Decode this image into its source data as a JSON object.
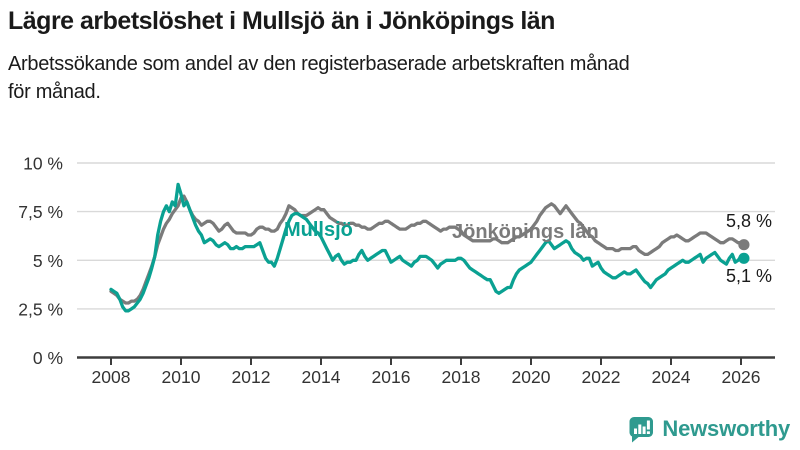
{
  "header": {
    "title": "Lägre arbetslöshet i Mullsjö än i Jönköpings län",
    "subtitle": "Arbetssökande som andel av den registerbaserade arbetskraften månad för månad."
  },
  "chart_data": {
    "type": "line",
    "grid": "horizontal-only",
    "x_axis": {
      "start_year": 2008.0,
      "step_months": 1,
      "tick_years": [
        2008,
        2010,
        2012,
        2014,
        2016,
        2018,
        2020,
        2022,
        2024,
        2026
      ],
      "tick_labels": [
        "2008",
        "2010",
        "2012",
        "2014",
        "2016",
        "2018",
        "2020",
        "2022",
        "2024",
        "2026"
      ]
    },
    "y_axis": {
      "range": [
        0,
        10
      ],
      "ticks": [
        {
          "value": 0,
          "label": "0 %"
        },
        {
          "value": 2.5,
          "label": "2,5 %"
        },
        {
          "value": 5,
          "label": "5 %"
        },
        {
          "value": 7.5,
          "label": "7,5 %"
        },
        {
          "value": 10,
          "label": "10 %"
        }
      ]
    },
    "series": [
      {
        "name": "Jönköpings län",
        "color": "#7b7b7b",
        "end_label": "5,8 %",
        "values": [
          3.4,
          3.3,
          3.2,
          3.0,
          2.9,
          2.8,
          2.8,
          2.9,
          2.9,
          3.0,
          3.2,
          3.5,
          3.9,
          4.3,
          4.7,
          5.2,
          5.8,
          6.2,
          6.6,
          6.9,
          7.1,
          7.4,
          7.6,
          7.8,
          8.2,
          8.3,
          8.0,
          7.6,
          7.3,
          7.1,
          7.0,
          6.8,
          6.9,
          7.0,
          7.0,
          6.9,
          6.7,
          6.5,
          6.6,
          6.8,
          6.9,
          6.7,
          6.5,
          6.4,
          6.4,
          6.4,
          6.4,
          6.3,
          6.3,
          6.4,
          6.6,
          6.7,
          6.7,
          6.6,
          6.6,
          6.5,
          6.5,
          6.6,
          6.9,
          7.1,
          7.4,
          7.8,
          7.7,
          7.6,
          7.4,
          7.3,
          7.3,
          7.3,
          7.4,
          7.5,
          7.6,
          7.7,
          7.6,
          7.6,
          7.4,
          7.2,
          7.1,
          7.0,
          6.9,
          6.9,
          6.8,
          6.8,
          6.9,
          6.9,
          6.8,
          6.8,
          6.7,
          6.7,
          6.6,
          6.6,
          6.7,
          6.8,
          6.9,
          6.9,
          7.0,
          7.0,
          6.9,
          6.8,
          6.7,
          6.6,
          6.6,
          6.6,
          6.7,
          6.8,
          6.8,
          6.9,
          6.9,
          7.0,
          7.0,
          6.9,
          6.8,
          6.7,
          6.6,
          6.5,
          6.6,
          6.6,
          6.7,
          6.7,
          6.7,
          6.6,
          6.5,
          6.3,
          6.2,
          6.1,
          6.0,
          6.0,
          6.0,
          6.0,
          6.0,
          6.0,
          6.0,
          6.1,
          6.1,
          6.0,
          5.9,
          5.9,
          5.9,
          6.0,
          6.1,
          6.2,
          6.2,
          6.3,
          6.4,
          6.5,
          6.6,
          6.8,
          7.0,
          7.3,
          7.5,
          7.7,
          7.8,
          7.9,
          7.8,
          7.6,
          7.4,
          7.6,
          7.8,
          7.6,
          7.4,
          7.2,
          7.0,
          6.9,
          6.7,
          6.5,
          6.3,
          6.2,
          6.0,
          5.9,
          5.8,
          5.7,
          5.6,
          5.6,
          5.6,
          5.5,
          5.5,
          5.6,
          5.6,
          5.6,
          5.6,
          5.7,
          5.7,
          5.5,
          5.4,
          5.3,
          5.3,
          5.4,
          5.5,
          5.6,
          5.7,
          5.9,
          6.0,
          6.1,
          6.2,
          6.2,
          6.3,
          6.2,
          6.1,
          6.0,
          6.0,
          6.1,
          6.2,
          6.3,
          6.4,
          6.4,
          6.4,
          6.3,
          6.2,
          6.1,
          6.0,
          5.9,
          5.9,
          6.0,
          6.1,
          6.1,
          6.0,
          5.9,
          5.9,
          5.8
        ]
      },
      {
        "name": "Mullsjö",
        "color": "#0aa192",
        "end_label": "5,1 %",
        "values": [
          3.5,
          3.4,
          3.3,
          3.0,
          2.6,
          2.4,
          2.4,
          2.5,
          2.6,
          2.8,
          3.0,
          3.3,
          3.7,
          4.1,
          4.6,
          5.2,
          6.3,
          7.0,
          7.5,
          7.8,
          7.5,
          8.0,
          7.8,
          8.9,
          8.4,
          7.8,
          8.0,
          7.6,
          7.2,
          6.8,
          6.5,
          6.3,
          5.9,
          6.0,
          6.1,
          6.0,
          5.8,
          5.7,
          5.8,
          5.9,
          5.8,
          5.6,
          5.6,
          5.7,
          5.6,
          5.6,
          5.7,
          5.7,
          5.7,
          5.7,
          5.8,
          5.9,
          5.5,
          5.1,
          4.9,
          4.9,
          4.7,
          5.1,
          5.6,
          6.1,
          6.6,
          7.0,
          7.3,
          7.4,
          7.4,
          7.3,
          7.2,
          7.1,
          6.9,
          6.7,
          6.5,
          6.4,
          6.2,
          5.9,
          5.6,
          5.3,
          5.0,
          5.2,
          5.3,
          5.0,
          4.8,
          4.9,
          4.9,
          5.0,
          5.0,
          5.3,
          5.5,
          5.2,
          5.0,
          5.1,
          5.2,
          5.3,
          5.4,
          5.5,
          5.5,
          5.2,
          4.9,
          5.0,
          5.1,
          5.2,
          5.0,
          4.9,
          4.8,
          4.7,
          4.9,
          5.0,
          5.2,
          5.2,
          5.2,
          5.1,
          5.0,
          4.8,
          4.6,
          4.8,
          4.9,
          5.0,
          5.0,
          5.0,
          5.0,
          5.1,
          5.1,
          5.0,
          4.8,
          4.6,
          4.5,
          4.4,
          4.3,
          4.2,
          4.1,
          4.0,
          4.0,
          3.7,
          3.4,
          3.3,
          3.4,
          3.5,
          3.6,
          3.6,
          4.0,
          4.3,
          4.5,
          4.6,
          4.7,
          4.8,
          4.9,
          5.1,
          5.3,
          5.5,
          5.7,
          5.9,
          6.0,
          5.8,
          5.6,
          5.7,
          5.8,
          5.9,
          6.0,
          5.9,
          5.6,
          5.4,
          5.3,
          5.2,
          5.0,
          5.1,
          5.1,
          4.7,
          4.8,
          4.9,
          4.6,
          4.4,
          4.3,
          4.2,
          4.1,
          4.1,
          4.2,
          4.3,
          4.4,
          4.3,
          4.3,
          4.4,
          4.5,
          4.3,
          4.1,
          3.9,
          3.8,
          3.6,
          3.8,
          4.0,
          4.1,
          4.2,
          4.3,
          4.5,
          4.6,
          4.7,
          4.8,
          4.9,
          5.0,
          4.9,
          4.9,
          5.0,
          5.1,
          5.2,
          5.3,
          4.9,
          5.1,
          5.2,
          5.3,
          5.4,
          5.2,
          5.0,
          4.9,
          4.8,
          5.1,
          5.3,
          4.9,
          5.0,
          5.2,
          5.1
        ]
      }
    ]
  },
  "footer": {
    "brand": "Newsworthy",
    "brand_color": "#2f9a8f",
    "logo_icon": "newsworthy-speech-bubble-bar-chart-icon"
  }
}
